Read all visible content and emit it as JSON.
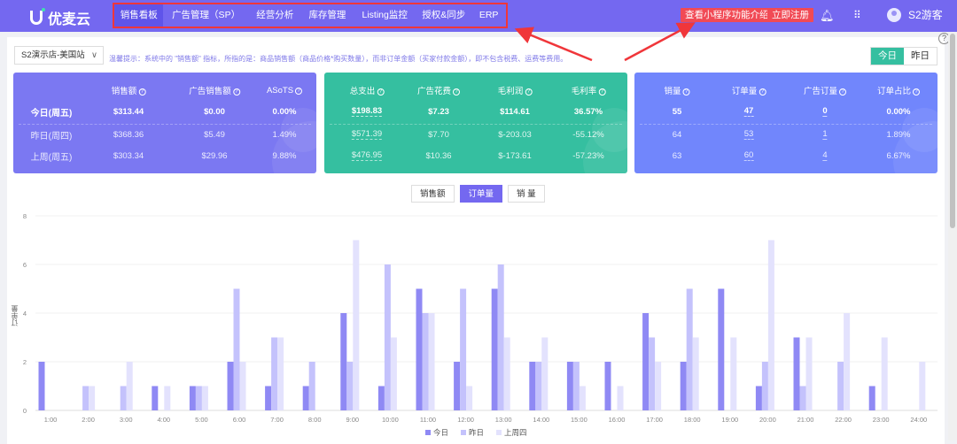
{
  "header": {
    "logo": "优麦云",
    "nav": [
      {
        "label": "销售看板",
        "active": true
      },
      {
        "label": "广告管理（SP）"
      },
      {
        "label": "经营分析"
      },
      {
        "label": "库存管理"
      },
      {
        "label": "Listing监控"
      },
      {
        "label": "授权&同步"
      },
      {
        "label": "ERP"
      }
    ],
    "mini_program_button": "查看小程序功能介绍",
    "register_button": "立即注册",
    "user": "S2游客",
    "icons": [
      "bell-icon",
      "apps-grid-icon",
      "avatar-icon"
    ]
  },
  "toolbar": {
    "store": "S2演示店-美国站",
    "tip": "温馨提示：系统中的 \"销售额\" 指标，所指的是：商品销售额（商品价格*购买数量），而非订单金额（买家付款金额），即不包含税费、运费等费用。",
    "today": "今日",
    "yesterday": "昨日",
    "help": "?"
  },
  "cards": [
    {
      "color": "#7b78f2",
      "headers": [
        "销售额",
        "广告销售额",
        "ASoTS"
      ],
      "rows": [
        {
          "label": "今日(周五)",
          "values": [
            "$313.44",
            "$0.00",
            "0.00%"
          ]
        },
        {
          "label": "昨日(周四)",
          "values": [
            "$368.36",
            "$5.49",
            "1.49%"
          ]
        },
        {
          "label": "上周(周五)",
          "values": [
            "$303.34",
            "$29.96",
            "9.88%"
          ]
        }
      ]
    },
    {
      "color": "#35bfa0",
      "headers": [
        "总支出",
        "广告花费",
        "毛利润",
        "毛利率"
      ],
      "rows": [
        {
          "values": [
            "$198.83",
            "$7.23",
            "$114.61",
            "36.57%"
          ]
        },
        {
          "values": [
            "$571.39",
            "$7.70",
            "$-203.03",
            "-55.12%"
          ]
        },
        {
          "values": [
            "$476.95",
            "$10.36",
            "$-173.61",
            "-57.23%"
          ]
        }
      ]
    },
    {
      "color": "#7186fc",
      "headers": [
        "销量",
        "订单量",
        "广告订量",
        "订单占比"
      ],
      "rows": [
        {
          "values": [
            "55",
            "47",
            "0",
            "0.00%"
          ]
        },
        {
          "values": [
            "64",
            "53",
            "1",
            "1.89%"
          ]
        },
        {
          "values": [
            "63",
            "60",
            "4",
            "6.67%"
          ]
        }
      ]
    }
  ],
  "metric_tabs": [
    {
      "label": "销售额"
    },
    {
      "label": "订单量",
      "active": true
    },
    {
      "label": "销 量"
    }
  ],
  "chart_data": {
    "type": "bar",
    "ylabel": "订单量",
    "ylim": [
      0,
      8
    ],
    "yticks": [
      0,
      2,
      4,
      6,
      8
    ],
    "grid": true,
    "legend_position": "bottom",
    "categories": [
      "1:00",
      "2:00",
      "3:00",
      "4:00",
      "5:00",
      "6:00",
      "7:00",
      "8:00",
      "9:00",
      "10:00",
      "11:00",
      "12:00",
      "13:00",
      "14:00",
      "15:00",
      "16:00",
      "17:00",
      "18:00",
      "19:00",
      "20:00",
      "21:00",
      "22:00",
      "23:00",
      "24:00"
    ],
    "series": [
      {
        "name": "今日",
        "color": "#8f89f4",
        "values": [
          2,
          0,
          0,
          1,
          1,
          2,
          1,
          1,
          4,
          1,
          5,
          2,
          5,
          2,
          2,
          2,
          4,
          2,
          5,
          1,
          3,
          0,
          1,
          0
        ]
      },
      {
        "name": "昨日",
        "color": "#c4c2fc",
        "values": [
          0,
          1,
          1,
          0,
          1,
          5,
          3,
          2,
          2,
          6,
          4,
          5,
          6,
          2,
          2,
          0,
          3,
          5,
          0,
          2,
          1,
          2,
          0,
          0
        ]
      },
      {
        "name": "上周四",
        "color": "#e3e2fd",
        "values": [
          0,
          1,
          2,
          1,
          1,
          2,
          3,
          0,
          7,
          3,
          4,
          1,
          3,
          3,
          1,
          1,
          2,
          3,
          3,
          7,
          3,
          4,
          3,
          2
        ]
      }
    ]
  }
}
